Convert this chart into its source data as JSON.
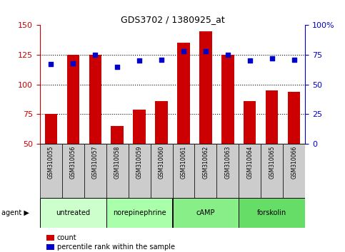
{
  "title": "GDS3702 / 1380925_at",
  "samples": [
    "GSM310055",
    "GSM310056",
    "GSM310057",
    "GSM310058",
    "GSM310059",
    "GSM310060",
    "GSM310061",
    "GSM310062",
    "GSM310063",
    "GSM310064",
    "GSM310065",
    "GSM310066"
  ],
  "counts": [
    75,
    125,
    125,
    65,
    79,
    86,
    135,
    145,
    125,
    86,
    95,
    94
  ],
  "percentiles": [
    67,
    68,
    75,
    65,
    70,
    71,
    78,
    78,
    75,
    70,
    72,
    71
  ],
  "bar_color": "#cc0000",
  "dot_color": "#0000cc",
  "left_ylim": [
    50,
    150
  ],
  "right_ylim": [
    0,
    100
  ],
  "left_yticks": [
    50,
    75,
    100,
    125,
    150
  ],
  "right_yticks": [
    0,
    25,
    50,
    75,
    100
  ],
  "right_yticklabels": [
    "0",
    "25",
    "50",
    "75",
    "100%"
  ],
  "grid_values": [
    75,
    100,
    125
  ],
  "agents": [
    {
      "label": "untreated",
      "start": 0,
      "end": 3,
      "color": "#ccffcc"
    },
    {
      "label": "norepinephrine",
      "start": 3,
      "end": 6,
      "color": "#aaffaa"
    },
    {
      "label": "cAMP",
      "start": 6,
      "end": 9,
      "color": "#88ee88"
    },
    {
      "label": "forskolin",
      "start": 9,
      "end": 12,
      "color": "#66dd66"
    }
  ],
  "agent_label": "agent",
  "legend_count_label": "count",
  "legend_pct_label": "percentile rank within the sample",
  "tick_bg_color": "#cccccc",
  "plot_bg_color": "#ffffff"
}
